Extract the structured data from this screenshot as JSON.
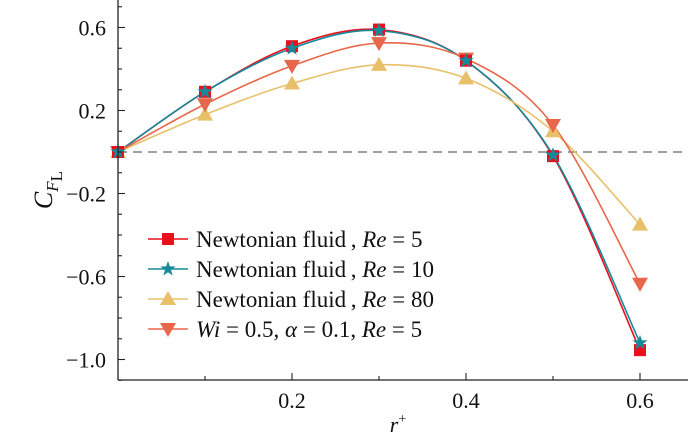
{
  "chart_data": {
    "type": "line",
    "title": "",
    "xlabel": "r",
    "xlabel_sup": "+",
    "ylabel": "C",
    "ylabel_sub_italic": "F",
    "ylabel_sub": "L",
    "xlim": [
      0,
      0.655
    ],
    "ylim": [
      -1.1,
      0.73
    ],
    "xticks": [
      0.2,
      0.4,
      0.6
    ],
    "xtick_labels": [
      "0.2",
      "0.4",
      "0.6"
    ],
    "yticks": [
      0.6,
      0.2,
      -0.2,
      -0.6,
      -1.0
    ],
    "ytick_labels": [
      "0.6",
      "0.2",
      "−0.2",
      "−0.6",
      "−1.0"
    ],
    "reference_line": {
      "y": 0,
      "style": "dashed",
      "color": "#808080"
    },
    "grid": false,
    "legend_placement": "bottom-left",
    "x": [
      0,
      0.1,
      0.2,
      0.3,
      0.4,
      0.5,
      0.6
    ],
    "series": [
      {
        "name": "Newtonian fluid",
        "legend_parts": [
          "Newtonian fluid , ",
          "Re",
          " = 5"
        ],
        "marker": "square",
        "color": "#e8101c",
        "values": [
          0,
          0.29,
          0.51,
          0.59,
          0.44,
          -0.02,
          -0.955
        ]
      },
      {
        "name": "Newtonian fluid",
        "legend_parts": [
          "Newtonian fluid , ",
          "Re",
          " = 10"
        ],
        "marker": "star",
        "color": "#16899a",
        "values": [
          0,
          0.29,
          0.5,
          0.585,
          0.44,
          -0.015,
          -0.92
        ]
      },
      {
        "name": "Newtonian fluid",
        "legend_parts": [
          "Newtonian fluid , ",
          "Re",
          " = 80"
        ],
        "marker": "triangle-up",
        "color": "#e9c06a",
        "values": [
          0,
          0.18,
          0.33,
          0.42,
          0.355,
          0.1,
          -0.35
        ]
      },
      {
        "name": "Wi = 0.5, α = 0.1, Re = 5",
        "legend_parts": [
          "",
          "Wi",
          " = 0.5, ",
          "α",
          " = 0.1, ",
          "Re",
          " = 5"
        ],
        "marker": "triangle-down",
        "color": "#e8674a",
        "values": [
          0,
          0.23,
          0.415,
          0.525,
          0.45,
          0.13,
          -0.635
        ]
      }
    ]
  }
}
